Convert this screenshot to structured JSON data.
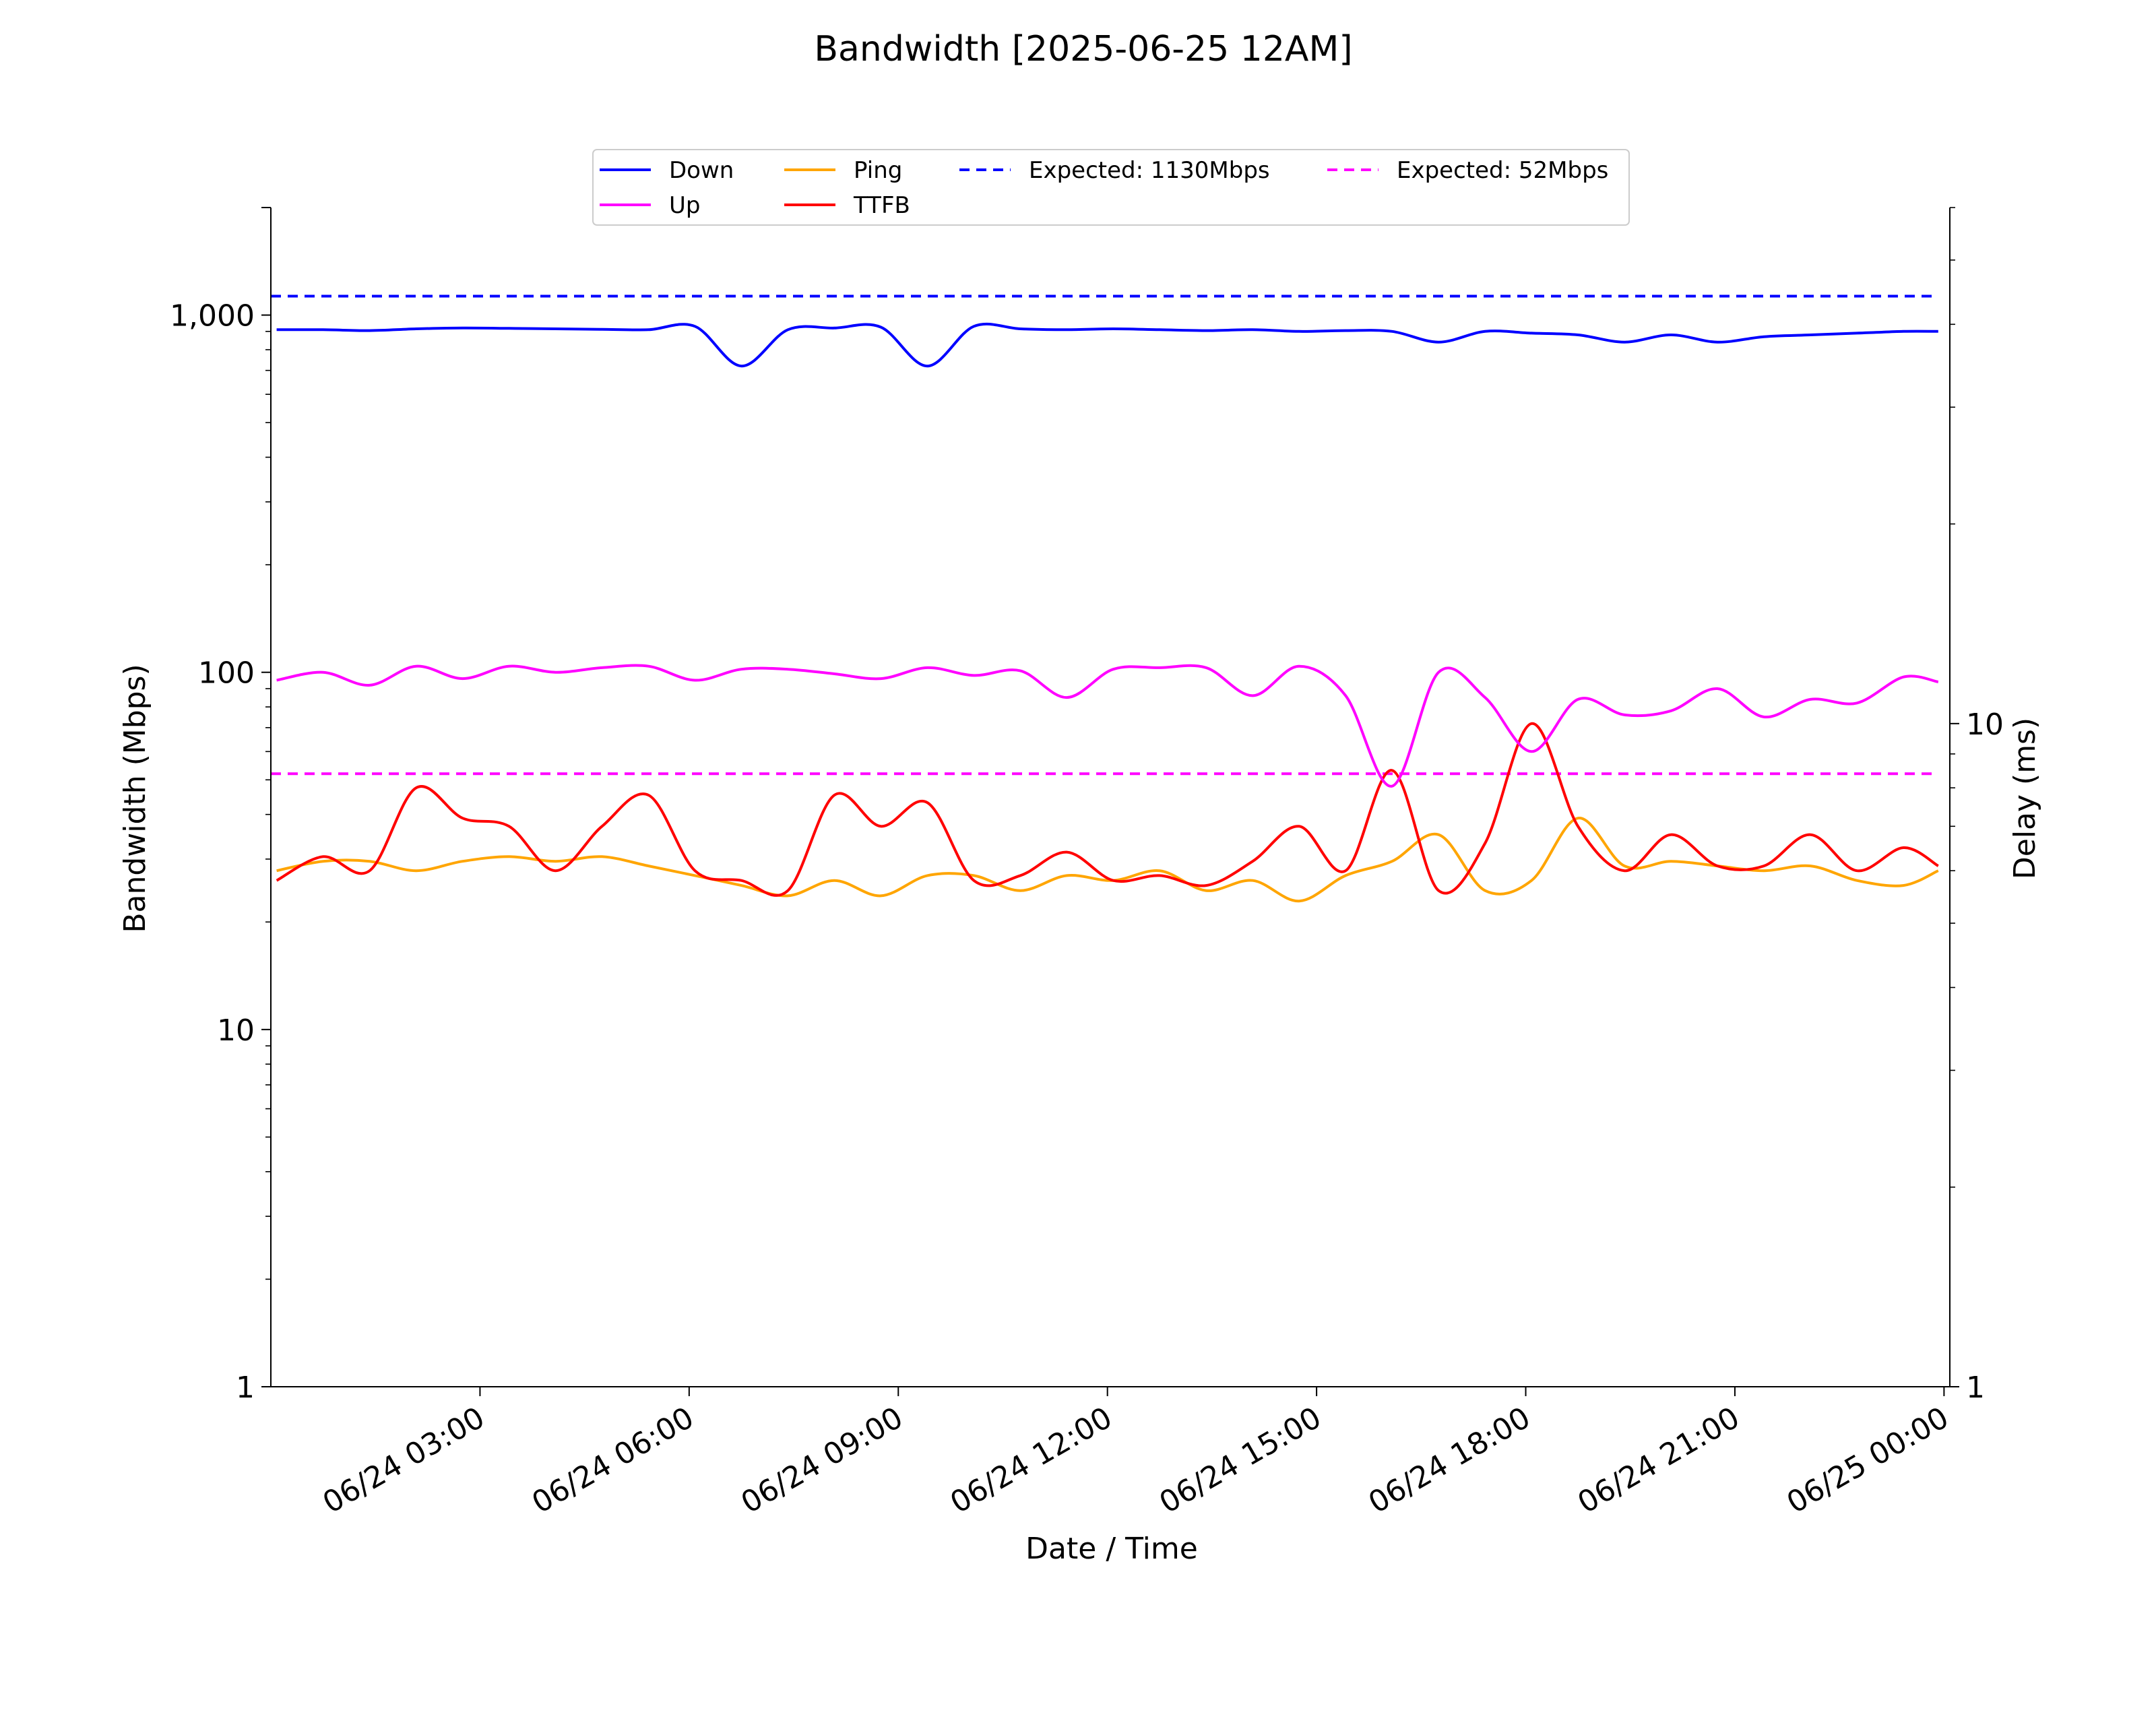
{
  "chart_data": {
    "type": "line",
    "title": "Bandwidth [2025-06-25 12AM]",
    "xlabel": "Date / Time",
    "ylabel": "Bandwidth (Mbps)",
    "y2label": "Delay (ms)",
    "x_start": "06/24 00:05",
    "x_end": "06/24 23:55",
    "x_ticks": [
      "06/24 03:00",
      "06/24 06:00",
      "06/24 09:00",
      "06/24 12:00",
      "06/24 15:00",
      "06/24 18:00",
      "06/24 21:00",
      "06/25 00:00"
    ],
    "y_scale": "log",
    "ylim": [
      1,
      2000
    ],
    "y_ticks": [
      "1",
      "10",
      "100",
      "1,000"
    ],
    "y2_scale": "log",
    "y2lim": [
      1,
      60
    ],
    "y2_ticks": [
      "1",
      "10"
    ],
    "x": [
      "06/24 00:05",
      "06/24 00:45",
      "06/24 01:25",
      "06/24 02:05",
      "06/24 02:45",
      "06/24 03:25",
      "06/24 04:05",
      "06/24 04:45",
      "06/24 05:25",
      "06/24 06:05",
      "06/24 06:45",
      "06/24 07:25",
      "06/24 08:05",
      "06/24 08:45",
      "06/24 09:25",
      "06/24 10:05",
      "06/24 10:45",
      "06/24 11:25",
      "06/24 12:05",
      "06/24 12:45",
      "06/24 13:25",
      "06/24 14:05",
      "06/24 14:45",
      "06/24 15:25",
      "06/24 16:05",
      "06/24 16:45",
      "06/24 17:25",
      "06/24 18:05",
      "06/24 18:45",
      "06/24 19:25",
      "06/24 20:05",
      "06/24 20:45",
      "06/24 21:25",
      "06/24 22:05",
      "06/24 22:45",
      "06/24 23:25",
      "06/24 23:55"
    ],
    "series": [
      {
        "name": "Down",
        "axis": "left",
        "color": "#0000ff",
        "dash": "solid",
        "values": [
          910,
          910,
          905,
          915,
          920,
          918,
          915,
          912,
          910,
          930,
          720,
          910,
          920,
          925,
          720,
          930,
          915,
          910,
          915,
          910,
          905,
          910,
          900,
          905,
          900,
          840,
          900,
          890,
          880,
          840,
          880,
          840,
          870,
          880,
          890,
          900,
          900
        ]
      },
      {
        "name": "Up",
        "axis": "left",
        "color": "#ff00ff",
        "dash": "solid",
        "values": [
          95,
          100,
          92,
          104,
          96,
          104,
          100,
          103,
          104,
          95,
          102,
          102,
          99,
          96,
          103,
          98,
          101,
          85,
          102,
          103,
          103,
          86,
          104,
          86,
          48,
          100,
          85,
          60,
          84,
          76,
          78,
          90,
          75,
          84,
          82,
          97,
          94
        ]
      },
      {
        "name": "Ping",
        "axis": "right",
        "color": "#ffa500",
        "dash": "solid",
        "values": [
          6.0,
          6.2,
          6.2,
          6.0,
          6.2,
          6.3,
          6.2,
          6.3,
          6.1,
          5.9,
          5.7,
          5.5,
          5.8,
          5.5,
          5.9,
          5.9,
          5.6,
          5.9,
          5.8,
          6.0,
          5.6,
          5.8,
          5.4,
          5.9,
          6.2,
          6.8,
          5.6,
          5.8,
          7.2,
          6.1,
          6.2,
          6.1,
          6.0,
          6.1,
          5.8,
          5.7,
          6.0
        ]
      },
      {
        "name": "TTFB",
        "axis": "right",
        "color": "#ff0000",
        "dash": "solid",
        "values": [
          5.8,
          6.3,
          6.0,
          8.0,
          7.2,
          7.0,
          6.0,
          7.0,
          7.8,
          6.0,
          5.8,
          5.6,
          7.8,
          7.0,
          7.6,
          5.8,
          5.9,
          6.4,
          5.8,
          5.9,
          5.7,
          6.2,
          7.0,
          6.0,
          8.5,
          5.6,
          6.6,
          10.0,
          7.0,
          6.0,
          6.8,
          6.1,
          6.1,
          6.8,
          6.0,
          6.5,
          6.1
        ]
      },
      {
        "name": "Expected: 1130Mbps",
        "axis": "left",
        "color": "#0000ff",
        "dash": "dashed",
        "constant": 1130
      },
      {
        "name": "Expected: 52Mbps",
        "axis": "left",
        "color": "#ff00ff",
        "dash": "dashed",
        "constant": 52
      }
    ],
    "legend": [
      "Down",
      "Up",
      "Ping",
      "TTFB",
      "Expected: 1130Mbps",
      "Expected: 52Mbps"
    ],
    "legend_position": "top-center",
    "grid": false
  }
}
